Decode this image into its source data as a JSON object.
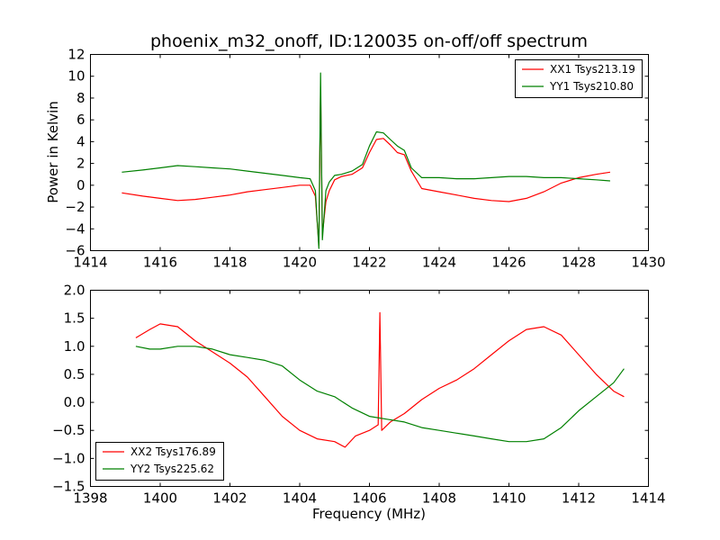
{
  "chart_data": [
    {
      "type": "line",
      "title": "phoenix_m32_onoff, ID:120035 on-off/off spectrum",
      "xlabel": "",
      "ylabel": "Power in Kelvin",
      "xlim": [
        1414,
        1430
      ],
      "ylim": [
        -6,
        12
      ],
      "xticks": [
        "1414",
        "1416",
        "1418",
        "1420",
        "1422",
        "1424",
        "1426",
        "1428",
        "1430"
      ],
      "yticks": [
        "−6",
        "−4",
        "−2",
        "0",
        "2",
        "4",
        "6",
        "8",
        "10",
        "12"
      ],
      "legend_position": "top-right",
      "series": [
        {
          "name": "XX1 Tsys213.19",
          "color": "#ff0000",
          "x": [
            1414.9,
            1415.5,
            1416,
            1416.5,
            1417,
            1417.5,
            1418,
            1418.5,
            1419,
            1419.5,
            1420,
            1420.3,
            1420.45,
            1420.55,
            1420.6,
            1420.65,
            1420.75,
            1420.85,
            1421,
            1421.2,
            1421.5,
            1421.8,
            1422,
            1422.2,
            1422.4,
            1422.6,
            1422.8,
            1423,
            1423.2,
            1423.5,
            1424,
            1424.5,
            1425,
            1425.5,
            1426,
            1426.5,
            1427,
            1427.5,
            1428,
            1428.5,
            1428.9
          ],
          "y": [
            -0.7,
            -1.0,
            -1.2,
            -1.4,
            -1.3,
            -1.1,
            -0.9,
            -0.6,
            -0.4,
            -0.2,
            0,
            0,
            -1.0,
            -5.5,
            9.0,
            -4.5,
            -1.5,
            -0.5,
            0.5,
            0.8,
            1.0,
            1.6,
            3.0,
            4.2,
            4.3,
            3.7,
            3.0,
            2.8,
            1.3,
            -0.3,
            -0.6,
            -0.9,
            -1.2,
            -1.4,
            -1.5,
            -1.2,
            -0.6,
            0.2,
            0.7,
            1.0,
            1.2
          ]
        },
        {
          "name": "YY1 Tsys210.80",
          "color": "#008000",
          "x": [
            1414.9,
            1415.5,
            1416,
            1416.5,
            1417,
            1417.5,
            1418,
            1418.5,
            1419,
            1419.5,
            1420,
            1420.3,
            1420.45,
            1420.55,
            1420.6,
            1420.65,
            1420.75,
            1420.85,
            1421,
            1421.2,
            1421.5,
            1421.8,
            1422,
            1422.2,
            1422.4,
            1422.6,
            1422.8,
            1423,
            1423.2,
            1423.5,
            1424,
            1424.5,
            1425,
            1425.5,
            1426,
            1426.5,
            1427,
            1427.5,
            1428,
            1428.5,
            1428.9
          ],
          "y": [
            1.2,
            1.4,
            1.6,
            1.8,
            1.7,
            1.6,
            1.5,
            1.3,
            1.1,
            0.9,
            0.7,
            0.6,
            -0.5,
            -5.8,
            10.3,
            -5.0,
            -0.5,
            0.3,
            0.9,
            1.0,
            1.3,
            1.9,
            3.6,
            4.9,
            4.8,
            4.2,
            3.6,
            3.2,
            1.6,
            0.7,
            0.7,
            0.6,
            0.6,
            0.7,
            0.8,
            0.8,
            0.7,
            0.7,
            0.6,
            0.5,
            0.4
          ]
        }
      ]
    },
    {
      "type": "line",
      "title": "",
      "xlabel": "Frequency (MHz)",
      "ylabel": "",
      "xlim": [
        1398,
        1414
      ],
      "ylim": [
        -1.5,
        2.0
      ],
      "xticks": [
        "1398",
        "1400",
        "1402",
        "1404",
        "1406",
        "1408",
        "1410",
        "1412",
        "1414"
      ],
      "yticks": [
        "−1.5",
        "−1.0",
        "−0.5",
        "0.0",
        "0.5",
        "1.0",
        "1.5",
        "2.0"
      ],
      "legend_position": "bottom-left",
      "series": [
        {
          "name": "XX2 Tsys176.89",
          "color": "#ff0000",
          "x": [
            1399.3,
            1399.7,
            1400,
            1400.5,
            1401,
            1401.5,
            1402,
            1402.5,
            1403,
            1403.5,
            1404,
            1404.5,
            1405,
            1405.3,
            1405.6,
            1406,
            1406.25,
            1406.3,
            1406.35,
            1406.6,
            1407,
            1407.5,
            1408,
            1408.5,
            1409,
            1409.5,
            1410,
            1410.5,
            1411,
            1411.5,
            1412,
            1412.5,
            1413,
            1413.3
          ],
          "y": [
            1.15,
            1.3,
            1.4,
            1.35,
            1.1,
            0.9,
            0.7,
            0.45,
            0.1,
            -0.25,
            -0.5,
            -0.65,
            -0.7,
            -0.8,
            -0.6,
            -0.5,
            -0.4,
            1.6,
            -0.5,
            -0.35,
            -0.2,
            0.05,
            0.25,
            0.4,
            0.6,
            0.85,
            1.1,
            1.3,
            1.35,
            1.2,
            0.85,
            0.5,
            0.2,
            0.1
          ]
        },
        {
          "name": "YY2 Tsys225.62",
          "color": "#008000",
          "x": [
            1399.3,
            1399.7,
            1400,
            1400.5,
            1401,
            1401.5,
            1402,
            1402.5,
            1403,
            1403.5,
            1404,
            1404.5,
            1405,
            1405.5,
            1406,
            1406.5,
            1407,
            1407.5,
            1408,
            1408.5,
            1409,
            1409.5,
            1410,
            1410.5,
            1411,
            1411.5,
            1412,
            1412.5,
            1413,
            1413.3
          ],
          "y": [
            1.0,
            0.95,
            0.95,
            1.0,
            1.0,
            0.95,
            0.85,
            0.8,
            0.75,
            0.65,
            0.4,
            0.2,
            0.1,
            -0.1,
            -0.25,
            -0.3,
            -0.35,
            -0.45,
            -0.5,
            -0.55,
            -0.6,
            -0.65,
            -0.7,
            -0.7,
            -0.65,
            -0.45,
            -0.15,
            0.1,
            0.35,
            0.6
          ]
        }
      ]
    }
  ]
}
